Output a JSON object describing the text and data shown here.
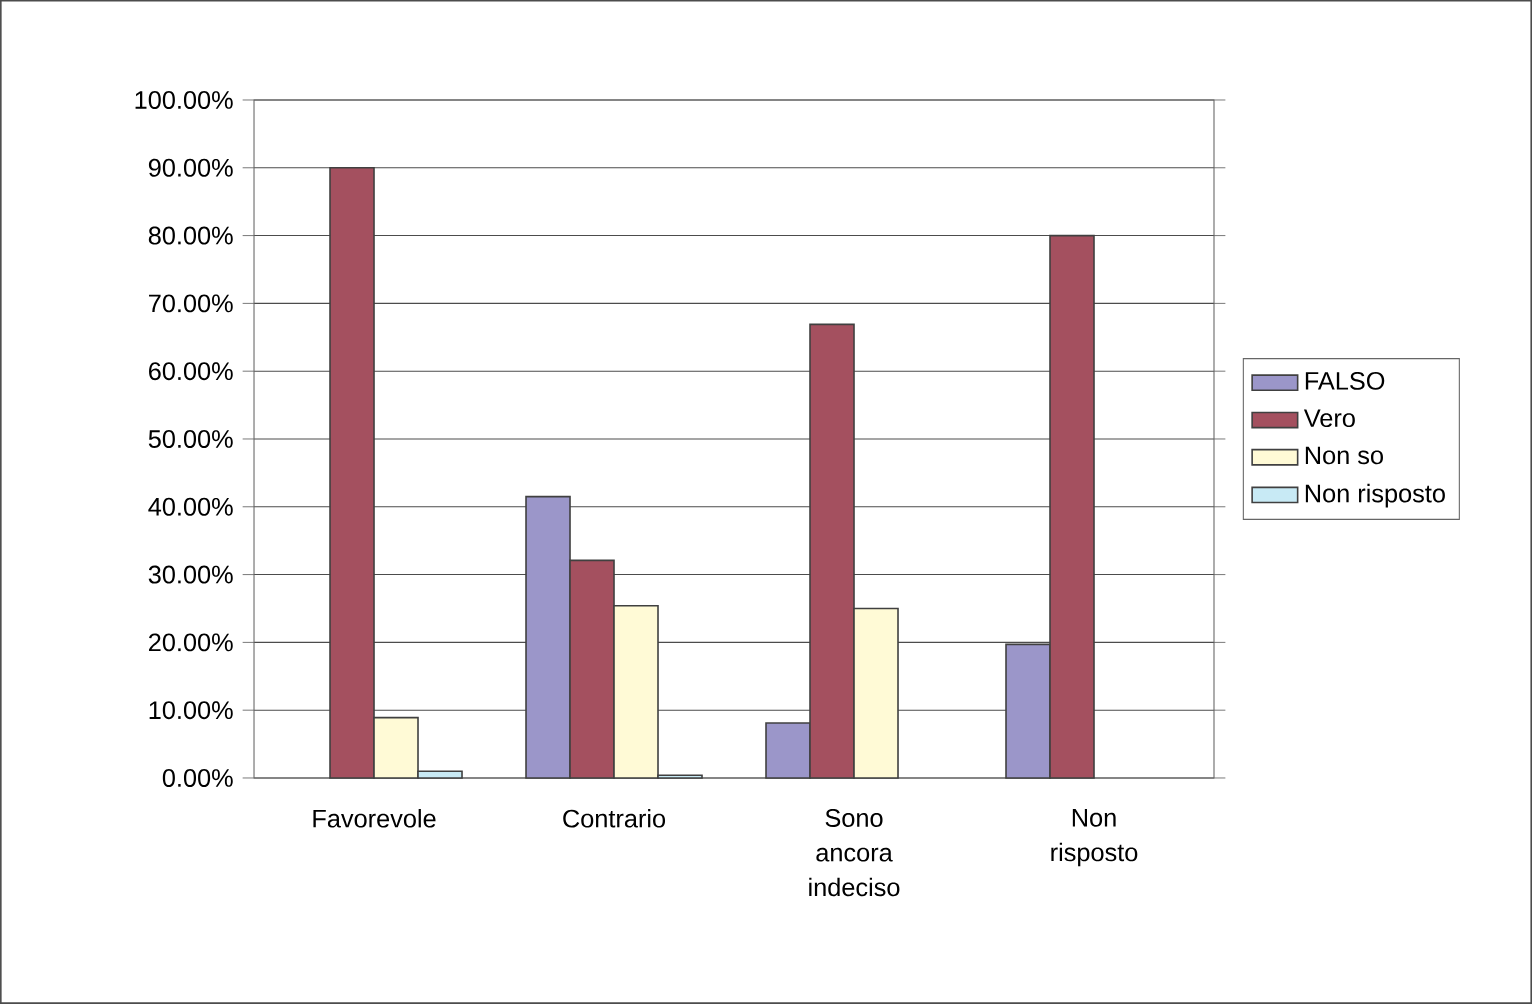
{
  "chart_data": {
    "type": "bar",
    "categories": [
      "Favorevole",
      "Contrario",
      "Sono ancora indeciso",
      "Non risposto"
    ],
    "series": [
      {
        "name": "FALSO",
        "color": "#9b96c9",
        "values": [
          null,
          41.5,
          8.1,
          19.7
        ]
      },
      {
        "name": "Vero",
        "color": "#a4505f",
        "values": [
          90,
          32.1,
          66.9,
          80
        ]
      },
      {
        "name": "Non so",
        "color": "#fffad6",
        "values": [
          8.9,
          25.4,
          25.0,
          null
        ]
      },
      {
        "name": "Non risposto",
        "color": "#c8eaf5",
        "values": [
          1.0,
          0.4,
          null,
          null
        ]
      }
    ],
    "ylim": [
      0,
      100
    ],
    "yticks": [
      {
        "value": 0,
        "label": "0.00%"
      },
      {
        "value": 10,
        "label": "10.00%"
      },
      {
        "value": 20,
        "label": "20.00%"
      },
      {
        "value": 30,
        "label": "30.00%"
      },
      {
        "value": 40,
        "label": "40.00%"
      },
      {
        "value": 50,
        "label": "50.00%"
      },
      {
        "value": 60,
        "label": "60.00%"
      },
      {
        "value": 70,
        "label": "70.00%"
      },
      {
        "value": 80,
        "label": "80.00%"
      },
      {
        "value": 90,
        "label": "90.00%"
      },
      {
        "value": 100,
        "label": "100.00%"
      }
    ],
    "grid": "y",
    "legend": "right"
  }
}
